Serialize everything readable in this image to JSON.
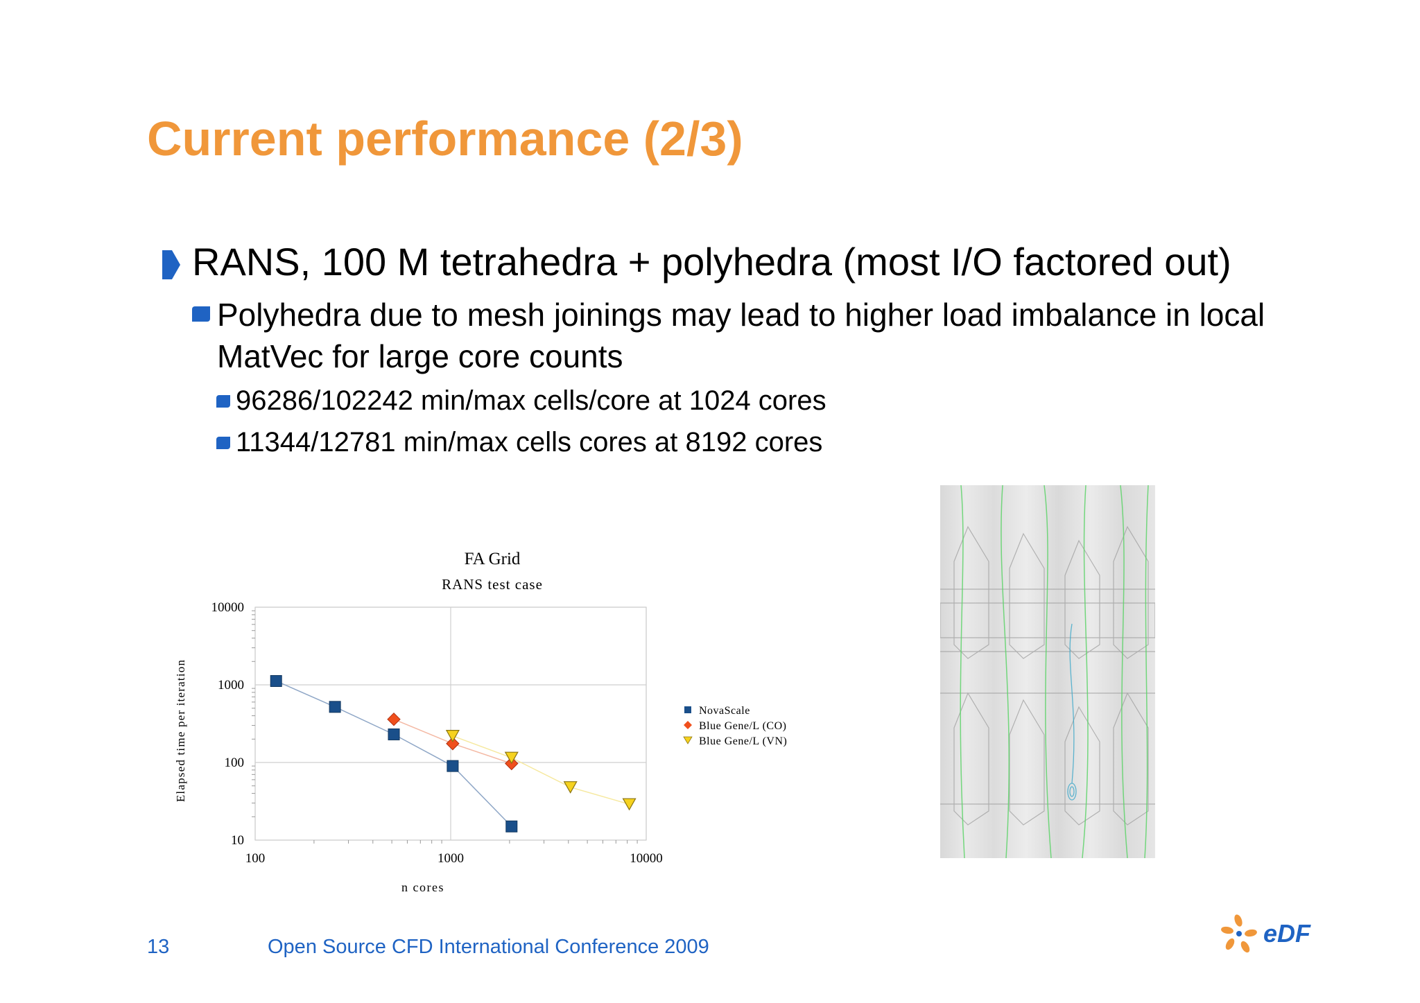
{
  "slide": {
    "title": "Current performance (2/3)",
    "bullet1": "RANS, 100 M tetrahedra + polyhedra (most I/O factored out)",
    "bullet2": "Polyhedra due to mesh joinings may lead to higher load imbalance in local MatVec for large core counts",
    "bullet3a": "96286/102242 min/max cells/core at 1024 cores",
    "bullet3b": "11344/12781 min/max cells cores at 8192 cores",
    "page_number": "13",
    "footer": "Open Source CFD International Conference 2009",
    "logo_text": "eDF"
  },
  "colors": {
    "title": "#f0973a",
    "bullet": "#1f63c3",
    "footer": "#1f63c3"
  },
  "chart_data": {
    "type": "scatter",
    "title": "FA Grid",
    "subtitle": "RANS test case",
    "xlabel": "n cores",
    "ylabel": "Elapsed time per iteration",
    "xscale": "log",
    "yscale": "log",
    "xlim": [
      100,
      10000
    ],
    "ylim": [
      10,
      10000
    ],
    "x_ticks": [
      "100",
      "1000",
      "10000"
    ],
    "y_ticks": [
      "10",
      "100",
      "1000",
      "10000"
    ],
    "grid": true,
    "legend_position": "right",
    "series": [
      {
        "name": "NovaScale",
        "marker": "square",
        "color": "#1a4f8a",
        "line": "#8ea6c6",
        "points": [
          [
            128,
            1120
          ],
          [
            256,
            520
          ],
          [
            512,
            230
          ],
          [
            1024,
            90
          ],
          [
            2048,
            15
          ]
        ]
      },
      {
        "name": "Blue Gene/L (CO)",
        "marker": "diamond",
        "color": "#f04f1c",
        "line": "#f4b9a4",
        "points": [
          [
            512,
            360
          ],
          [
            1024,
            175
          ],
          [
            2048,
            97
          ]
        ]
      },
      {
        "name": "Blue Gene/L (VN)",
        "marker": "triangle-down",
        "color": "#f6d21e",
        "line": "#f6e9a0",
        "points": [
          [
            1024,
            220
          ],
          [
            2048,
            115
          ],
          [
            4096,
            48
          ],
          [
            8192,
            29
          ]
        ]
      }
    ]
  }
}
